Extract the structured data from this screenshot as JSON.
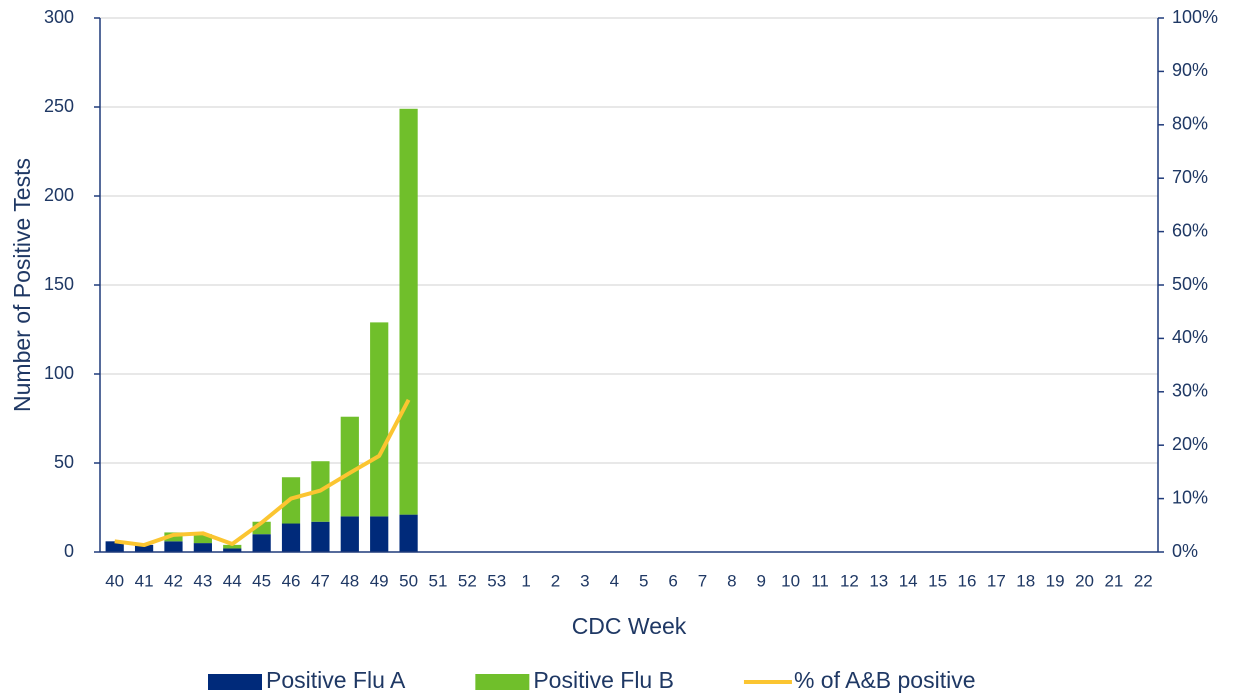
{
  "chart_data": {
    "type": "bar",
    "stacked": true,
    "x_label": "CDC Week",
    "y_label": "Number of Positive Tests",
    "categories": [
      "40",
      "41",
      "42",
      "43",
      "44",
      "45",
      "46",
      "47",
      "48",
      "49",
      "50",
      "51",
      "52",
      "53",
      "1",
      "2",
      "3",
      "4",
      "5",
      "6",
      "7",
      "8",
      "9",
      "10",
      "11",
      "12",
      "13",
      "14",
      "15",
      "16",
      "17",
      "18",
      "19",
      "20",
      "21",
      "22"
    ],
    "series": [
      {
        "name": "Positive Flu A",
        "type": "bar",
        "color": "#002a7a",
        "values": [
          6,
          4,
          6,
          5,
          2,
          10,
          16,
          17,
          20,
          20,
          21,
          null,
          null,
          null,
          null,
          null,
          null,
          null,
          null,
          null,
          null,
          null,
          null,
          null,
          null,
          null,
          null,
          null,
          null,
          null,
          null,
          null,
          null,
          null,
          null,
          null
        ]
      },
      {
        "name": "Positive Flu B",
        "type": "bar",
        "color": "#70bf2b",
        "values": [
          0,
          0,
          5,
          5,
          2,
          7,
          26,
          34,
          56,
          109,
          228,
          null,
          null,
          null,
          null,
          null,
          null,
          null,
          null,
          null,
          null,
          null,
          null,
          null,
          null,
          null,
          null,
          null,
          null,
          null,
          null,
          null,
          null,
          null,
          null,
          null
        ]
      },
      {
        "name": "% of A&B positive",
        "type": "line",
        "axis": "y2",
        "color": "#fbc531",
        "values": [
          2,
          1.3,
          3.2,
          3.5,
          1.5,
          5.5,
          10,
          11.5,
          14.8,
          18,
          28.5,
          null,
          null,
          null,
          null,
          null,
          null,
          null,
          null,
          null,
          null,
          null,
          null,
          null,
          null,
          null,
          null,
          null,
          null,
          null,
          null,
          null,
          null,
          null,
          null,
          null
        ]
      }
    ],
    "ylim": [
      0,
      300
    ],
    "yticks": [
      0,
      50,
      100,
      150,
      200,
      250,
      300
    ],
    "y2lim": [
      0,
      100
    ],
    "y2ticks": [
      {
        "value": 0,
        "label": "0%"
      },
      {
        "value": 10,
        "label": "10%"
      },
      {
        "value": 20,
        "label": "20%"
      },
      {
        "value": 30,
        "label": "30%"
      },
      {
        "value": 40,
        "label": "40%"
      },
      {
        "value": 50,
        "label": "50%"
      },
      {
        "value": 60,
        "label": "60%"
      },
      {
        "value": 70,
        "label": "70%"
      },
      {
        "value": 80,
        "label": "80%"
      },
      {
        "value": 90,
        "label": "90%"
      },
      {
        "value": 100,
        "label": "100%"
      }
    ],
    "grid": true,
    "legend": "bottom"
  }
}
